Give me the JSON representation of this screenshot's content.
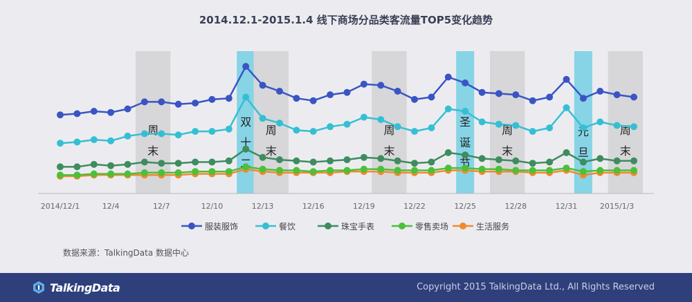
{
  "title": "2014.12.1-2015.1.4 线下商场分品类客流量TOP5变化趋势",
  "source": "数据来源：TalkingData 数据中心",
  "footer": {
    "logo_text": "TalkingData",
    "copyright": "Copyright 2015 TalkingData Ltd., All Rights Reserved",
    "background": "#2e3f7c"
  },
  "chart_data": {
    "type": "line",
    "x": [
      "2014/12/1",
      "12/2",
      "12/3",
      "12/4",
      "12/5",
      "12/6",
      "12/7",
      "12/8",
      "12/9",
      "12/10",
      "12/11",
      "12/12",
      "12/13",
      "12/14",
      "12/15",
      "12/16",
      "12/17",
      "12/18",
      "12/19",
      "12/20",
      "12/21",
      "12/22",
      "12/23",
      "12/24",
      "12/25",
      "12/26",
      "12/27",
      "12/28",
      "12/29",
      "12/30",
      "12/31",
      "2015/1/1",
      "1/2",
      "1/3",
      "1/4"
    ],
    "x_tick_labels": [
      "2014/12/1",
      "12/4",
      "12/7",
      "12/10",
      "12/13",
      "12/16",
      "12/19",
      "12/22",
      "12/25",
      "12/28",
      "12/31",
      "2015/1/3"
    ],
    "x_tick_indices": [
      0,
      3,
      6,
      9,
      12,
      15,
      18,
      21,
      24,
      27,
      30,
      33
    ],
    "series": [
      {
        "name": "服装服饰",
        "color": "#3a54c4",
        "values": [
          0.59,
          0.6,
          0.62,
          0.61,
          0.64,
          0.7,
          0.7,
          0.68,
          0.69,
          0.72,
          0.73,
          1.0,
          0.84,
          0.79,
          0.73,
          0.71,
          0.76,
          0.78,
          0.85,
          0.84,
          0.79,
          0.72,
          0.74,
          0.91,
          0.86,
          0.78,
          0.77,
          0.76,
          0.71,
          0.74,
          0.89,
          0.73,
          0.79,
          0.76,
          0.74
        ]
      },
      {
        "name": "餐饮",
        "color": "#35bfd3",
        "values": [
          0.35,
          0.36,
          0.38,
          0.37,
          0.41,
          0.43,
          0.43,
          0.42,
          0.45,
          0.45,
          0.47,
          0.74,
          0.56,
          0.52,
          0.46,
          0.45,
          0.49,
          0.51,
          0.57,
          0.55,
          0.49,
          0.45,
          0.48,
          0.64,
          0.62,
          0.53,
          0.51,
          0.5,
          0.45,
          0.48,
          0.65,
          0.48,
          0.53,
          0.5,
          0.49
        ]
      },
      {
        "name": "珠宝手表",
        "color": "#3e8c5f",
        "values": [
          0.15,
          0.15,
          0.17,
          0.16,
          0.17,
          0.19,
          0.18,
          0.18,
          0.19,
          0.19,
          0.2,
          0.3,
          0.23,
          0.21,
          0.2,
          0.19,
          0.2,
          0.21,
          0.23,
          0.22,
          0.2,
          0.18,
          0.19,
          0.27,
          0.25,
          0.22,
          0.21,
          0.2,
          0.18,
          0.19,
          0.27,
          0.19,
          0.22,
          0.2,
          0.2
        ]
      },
      {
        "name": "零售卖场",
        "color": "#4dbf3a",
        "values": [
          0.08,
          0.08,
          0.09,
          0.09,
          0.09,
          0.1,
          0.1,
          0.1,
          0.11,
          0.11,
          0.11,
          0.15,
          0.13,
          0.12,
          0.12,
          0.11,
          0.12,
          0.12,
          0.13,
          0.13,
          0.12,
          0.12,
          0.12,
          0.14,
          0.14,
          0.13,
          0.13,
          0.12,
          0.12,
          0.12,
          0.14,
          0.11,
          0.12,
          0.12,
          0.12
        ]
      },
      {
        "name": "生活服务",
        "color": "#f08a2c",
        "values": [
          0.07,
          0.07,
          0.08,
          0.08,
          0.08,
          0.08,
          0.08,
          0.08,
          0.09,
          0.09,
          0.09,
          0.13,
          0.11,
          0.1,
          0.1,
          0.1,
          0.1,
          0.11,
          0.11,
          0.11,
          0.1,
          0.1,
          0.1,
          0.12,
          0.12,
          0.11,
          0.11,
          0.11,
          0.1,
          0.1,
          0.12,
          0.08,
          0.1,
          0.1,
          0.1
        ]
      }
    ],
    "highlights": [
      {
        "label": "周末",
        "start": 5,
        "end": 6,
        "kind": "weekend",
        "color": "#d7d7d9"
      },
      {
        "label": "双十二",
        "start": 11,
        "end": 11,
        "kind": "holiday",
        "color": "#86d4e6"
      },
      {
        "label": "周末",
        "start": 12,
        "end": 13,
        "kind": "weekend",
        "color": "#d7d7d9"
      },
      {
        "label": "周末",
        "start": 19,
        "end": 20,
        "kind": "weekend",
        "color": "#d7d7d9"
      },
      {
        "label": "圣诞节",
        "start": 24,
        "end": 24,
        "kind": "holiday",
        "color": "#86d4e6"
      },
      {
        "label": "周末",
        "start": 26,
        "end": 27,
        "kind": "weekend",
        "color": "#d7d7d9"
      },
      {
        "label": "元旦",
        "start": 31,
        "end": 31,
        "kind": "holiday",
        "color": "#86d4e6"
      },
      {
        "label": "周末",
        "start": 33,
        "end": 34,
        "kind": "weekend",
        "color": "#d7d7d9"
      }
    ],
    "y_axis": "hidden",
    "grid": false,
    "legend_position": "bottom"
  }
}
